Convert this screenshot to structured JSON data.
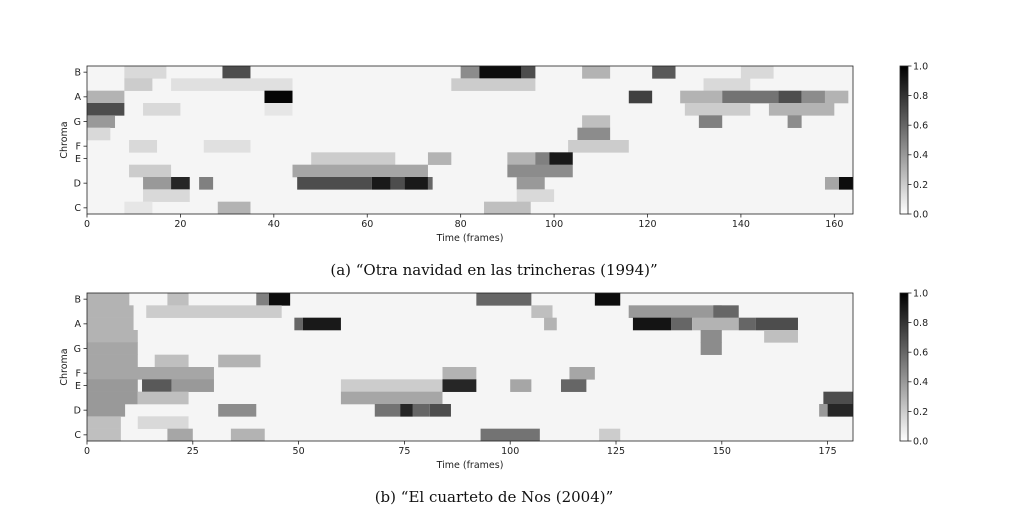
{
  "chart_data": [
    {
      "type": "heatmap",
      "caption": "(a) “Otra navidad en las trincheras (1994)”",
      "xlabel": "Time (frames)",
      "ylabel": "Chroma",
      "xlim": [
        0,
        164
      ],
      "x_ticks": [
        0,
        20,
        40,
        60,
        80,
        100,
        120,
        140,
        160
      ],
      "y_categories": [
        "C",
        "C#",
        "D",
        "D#",
        "E",
        "F",
        "F#",
        "G",
        "G#",
        "A",
        "A#",
        "B"
      ],
      "y_tick_labels": [
        "C",
        "D",
        "E",
        "F",
        "G",
        "A",
        "B"
      ],
      "colorbar": {
        "range": [
          0,
          1
        ],
        "ticks": [
          0.0,
          0.2,
          0.4,
          0.6,
          0.8,
          1.0
        ],
        "tick_labels": [
          "0.0",
          "0.2",
          "0.4",
          "0.6",
          "0.8",
          "1.0"
        ]
      },
      "colormap": [
        "#ffffff",
        "#000000"
      ],
      "background_value": 0.04,
      "blocks": [
        {
          "chroma": "B",
          "x": [
            29,
            35
          ],
          "value": 0.7
        },
        {
          "chroma": "B",
          "x": [
            8,
            17
          ],
          "value": 0.15
        },
        {
          "chroma": "B",
          "x": [
            80,
            84
          ],
          "value": 0.45
        },
        {
          "chroma": "B",
          "x": [
            84,
            93
          ],
          "value": 0.95
        },
        {
          "chroma": "B",
          "x": [
            93,
            96
          ],
          "value": 0.7
        },
        {
          "chroma": "B",
          "x": [
            106,
            112
          ],
          "value": 0.3
        },
        {
          "chroma": "B",
          "x": [
            121,
            126
          ],
          "value": 0.65
        },
        {
          "chroma": "B",
          "x": [
            140,
            147
          ],
          "value": 0.15
        },
        {
          "chroma": "A#",
          "x": [
            8,
            14
          ],
          "value": 0.2
        },
        {
          "chroma": "A#",
          "x": [
            18,
            44
          ],
          "value": 0.12
        },
        {
          "chroma": "A#",
          "x": [
            78,
            96
          ],
          "value": 0.2
        },
        {
          "chroma": "A#",
          "x": [
            132,
            142
          ],
          "value": 0.15
        },
        {
          "chroma": "A",
          "x": [
            0,
            8
          ],
          "value": 0.3
        },
        {
          "chroma": "A",
          "x": [
            38,
            44
          ],
          "value": 0.98
        },
        {
          "chroma": "A",
          "x": [
            116,
            121
          ],
          "value": 0.75
        },
        {
          "chroma": "A",
          "x": [
            127,
            136
          ],
          "value": 0.3
        },
        {
          "chroma": "A",
          "x": [
            136,
            148
          ],
          "value": 0.55
        },
        {
          "chroma": "A",
          "x": [
            148,
            153
          ],
          "value": 0.7
        },
        {
          "chroma": "A",
          "x": [
            153,
            158
          ],
          "value": 0.45
        },
        {
          "chroma": "A",
          "x": [
            158,
            163
          ],
          "value": 0.3
        },
        {
          "chroma": "G#",
          "x": [
            0,
            8
          ],
          "value": 0.7
        },
        {
          "chroma": "G#",
          "x": [
            12,
            20
          ],
          "value": 0.15
        },
        {
          "chroma": "G#",
          "x": [
            38,
            44
          ],
          "value": 0.1
        },
        {
          "chroma": "G#",
          "x": [
            128,
            142
          ],
          "value": 0.2
        },
        {
          "chroma": "G#",
          "x": [
            146,
            160
          ],
          "value": 0.3
        },
        {
          "chroma": "G",
          "x": [
            0,
            6
          ],
          "value": 0.4
        },
        {
          "chroma": "G",
          "x": [
            131,
            136
          ],
          "value": 0.5
        },
        {
          "chroma": "G",
          "x": [
            106,
            112
          ],
          "value": 0.25
        },
        {
          "chroma": "G",
          "x": [
            150,
            153
          ],
          "value": 0.45
        },
        {
          "chroma": "F#",
          "x": [
            105,
            112
          ],
          "value": 0.45
        },
        {
          "chroma": "F#",
          "x": [
            0,
            5
          ],
          "value": 0.15
        },
        {
          "chroma": "F",
          "x": [
            9,
            15
          ],
          "value": 0.15
        },
        {
          "chroma": "F",
          "x": [
            25,
            35
          ],
          "value": 0.12
        },
        {
          "chroma": "F",
          "x": [
            103,
            116
          ],
          "value": 0.2
        },
        {
          "chroma": "E",
          "x": [
            48,
            66
          ],
          "value": 0.2
        },
        {
          "chroma": "E",
          "x": [
            73,
            78
          ],
          "value": 0.3
        },
        {
          "chroma": "E",
          "x": [
            90,
            100
          ],
          "value": 0.3
        },
        {
          "chroma": "E",
          "x": [
            96,
            99
          ],
          "value": 0.5
        },
        {
          "chroma": "E",
          "x": [
            99,
            104
          ],
          "value": 0.9
        },
        {
          "chroma": "D#",
          "x": [
            44,
            73
          ],
          "value": 0.35
        },
        {
          "chroma": "D#",
          "x": [
            90,
            104
          ],
          "value": 0.45
        },
        {
          "chroma": "D#",
          "x": [
            9,
            18
          ],
          "value": 0.2
        },
        {
          "chroma": "D",
          "x": [
            12,
            18
          ],
          "value": 0.4
        },
        {
          "chroma": "D",
          "x": [
            18,
            22
          ],
          "value": 0.85
        },
        {
          "chroma": "D",
          "x": [
            24,
            27
          ],
          "value": 0.5
        },
        {
          "chroma": "D",
          "x": [
            45,
            61
          ],
          "value": 0.7
        },
        {
          "chroma": "D",
          "x": [
            61,
            65
          ],
          "value": 0.9
        },
        {
          "chroma": "D",
          "x": [
            65,
            68
          ],
          "value": 0.7
        },
        {
          "chroma": "D",
          "x": [
            68,
            73
          ],
          "value": 0.9
        },
        {
          "chroma": "D",
          "x": [
            73,
            74
          ],
          "value": 0.6
        },
        {
          "chroma": "D",
          "x": [
            92,
            98
          ],
          "value": 0.4
        },
        {
          "chroma": "D",
          "x": [
            158,
            161
          ],
          "value": 0.35
        },
        {
          "chroma": "D",
          "x": [
            161,
            164
          ],
          "value": 0.95
        },
        {
          "chroma": "C#",
          "x": [
            12,
            22
          ],
          "value": 0.15
        },
        {
          "chroma": "C#",
          "x": [
            92,
            100
          ],
          "value": 0.15
        },
        {
          "chroma": "C",
          "x": [
            28,
            35
          ],
          "value": 0.3
        },
        {
          "chroma": "C",
          "x": [
            85,
            95
          ],
          "value": 0.25
        },
        {
          "chroma": "C",
          "x": [
            8,
            14
          ],
          "value": 0.1
        }
      ]
    },
    {
      "type": "heatmap",
      "caption": "(b) “El cuarteto de Nos (2004)”",
      "xlabel": "Time (frames)",
      "ylabel": "Chroma",
      "xlim": [
        0,
        181
      ],
      "x_ticks": [
        0,
        25,
        50,
        75,
        100,
        125,
        150,
        175
      ],
      "y_categories": [
        "C",
        "C#",
        "D",
        "D#",
        "E",
        "F",
        "F#",
        "G",
        "G#",
        "A",
        "A#",
        "B"
      ],
      "y_tick_labels": [
        "C",
        "D",
        "E",
        "F",
        "G",
        "A",
        "B"
      ],
      "colorbar": {
        "range": [
          0,
          1
        ],
        "ticks": [
          0.0,
          0.2,
          0.4,
          0.6,
          0.8,
          1.0
        ],
        "tick_labels": [
          "0.0",
          "0.2",
          "0.4",
          "0.6",
          "0.8",
          "1.0"
        ]
      },
      "colormap": [
        "#ffffff",
        "#000000"
      ],
      "background_value": 0.04,
      "blocks": [
        {
          "chroma": "B",
          "x": [
            0,
            10
          ],
          "value": 0.3
        },
        {
          "chroma": "B",
          "x": [
            19,
            24
          ],
          "value": 0.25
        },
        {
          "chroma": "B",
          "x": [
            40,
            43
          ],
          "value": 0.5
        },
        {
          "chroma": "B",
          "x": [
            43,
            48
          ],
          "value": 0.95
        },
        {
          "chroma": "B",
          "x": [
            92,
            105
          ],
          "value": 0.6
        },
        {
          "chroma": "B",
          "x": [
            120,
            126
          ],
          "value": 0.95
        },
        {
          "chroma": "A#",
          "x": [
            0,
            11
          ],
          "value": 0.3
        },
        {
          "chroma": "A#",
          "x": [
            14,
            46
          ],
          "value": 0.2
        },
        {
          "chroma": "A#",
          "x": [
            105,
            110
          ],
          "value": 0.25
        },
        {
          "chroma": "A#",
          "x": [
            128,
            150
          ],
          "value": 0.4
        },
        {
          "chroma": "A#",
          "x": [
            148,
            154
          ],
          "value": 0.6
        },
        {
          "chroma": "A",
          "x": [
            0,
            11
          ],
          "value": 0.3
        },
        {
          "chroma": "A",
          "x": [
            49,
            51
          ],
          "value": 0.6
        },
        {
          "chroma": "A",
          "x": [
            51,
            60
          ],
          "value": 0.9
        },
        {
          "chroma": "A",
          "x": [
            108,
            111
          ],
          "value": 0.3
        },
        {
          "chroma": "A",
          "x": [
            129,
            138
          ],
          "value": 0.92
        },
        {
          "chroma": "A",
          "x": [
            138,
            143
          ],
          "value": 0.6
        },
        {
          "chroma": "A",
          "x": [
            143,
            154
          ],
          "value": 0.3
        },
        {
          "chroma": "A",
          "x": [
            154,
            158
          ],
          "value": 0.6
        },
        {
          "chroma": "A",
          "x": [
            158,
            168
          ],
          "value": 0.7
        },
        {
          "chroma": "G#",
          "x": [
            0,
            12
          ],
          "value": 0.3
        },
        {
          "chroma": "G#",
          "x": [
            145,
            150
          ],
          "value": 0.45
        },
        {
          "chroma": "G#",
          "x": [
            160,
            168
          ],
          "value": 0.25
        },
        {
          "chroma": "G",
          "x": [
            0,
            12
          ],
          "value": 0.35
        },
        {
          "chroma": "G",
          "x": [
            145,
            150
          ],
          "value": 0.45
        },
        {
          "chroma": "F#",
          "x": [
            0,
            12
          ],
          "value": 0.35
        },
        {
          "chroma": "F#",
          "x": [
            16,
            24
          ],
          "value": 0.25
        },
        {
          "chroma": "F#",
          "x": [
            31,
            41
          ],
          "value": 0.3
        },
        {
          "chroma": "F",
          "x": [
            0,
            30
          ],
          "value": 0.35
        },
        {
          "chroma": "F",
          "x": [
            84,
            92
          ],
          "value": 0.3
        },
        {
          "chroma": "F",
          "x": [
            114,
            120
          ],
          "value": 0.35
        },
        {
          "chroma": "E",
          "x": [
            0,
            12
          ],
          "value": 0.4
        },
        {
          "chroma": "E",
          "x": [
            13,
            20
          ],
          "value": 0.65
        },
        {
          "chroma": "E",
          "x": [
            20,
            30
          ],
          "value": 0.4
        },
        {
          "chroma": "E",
          "x": [
            60,
            84
          ],
          "value": 0.2
        },
        {
          "chroma": "E",
          "x": [
            84,
            92
          ],
          "value": 0.85
        },
        {
          "chroma": "E",
          "x": [
            100,
            105
          ],
          "value": 0.35
        },
        {
          "chroma": "E",
          "x": [
            112,
            118
          ],
          "value": 0.6
        },
        {
          "chroma": "D#",
          "x": [
            0,
            12
          ],
          "value": 0.4
        },
        {
          "chroma": "D#",
          "x": [
            60,
            84
          ],
          "value": 0.35
        },
        {
          "chroma": "D#",
          "x": [
            12,
            24
          ],
          "value": 0.25
        },
        {
          "chroma": "D#",
          "x": [
            174,
            181
          ],
          "value": 0.7
        },
        {
          "chroma": "D",
          "x": [
            0,
            9
          ],
          "value": 0.4
        },
        {
          "chroma": "D",
          "x": [
            31,
            40
          ],
          "value": 0.45
        },
        {
          "chroma": "D",
          "x": [
            68,
            74
          ],
          "value": 0.55
        },
        {
          "chroma": "D",
          "x": [
            74,
            77
          ],
          "value": 0.85
        },
        {
          "chroma": "D",
          "x": [
            77,
            81
          ],
          "value": 0.6
        },
        {
          "chroma": "D",
          "x": [
            81,
            86
          ],
          "value": 0.7
        },
        {
          "chroma": "D",
          "x": [
            173,
            175
          ],
          "value": 0.4
        },
        {
          "chroma": "D",
          "x": [
            175,
            181
          ],
          "value": 0.85
        },
        {
          "chroma": "C#",
          "x": [
            0,
            8
          ],
          "value": 0.25
        },
        {
          "chroma": "C#",
          "x": [
            12,
            24
          ],
          "value": 0.15
        },
        {
          "chroma": "C",
          "x": [
            0,
            8
          ],
          "value": 0.25
        },
        {
          "chroma": "C",
          "x": [
            19,
            25
          ],
          "value": 0.35
        },
        {
          "chroma": "C",
          "x": [
            34,
            42
          ],
          "value": 0.3
        },
        {
          "chroma": "C",
          "x": [
            93,
            107
          ],
          "value": 0.55
        },
        {
          "chroma": "C",
          "x": [
            121,
            126
          ],
          "value": 0.2
        }
      ]
    }
  ]
}
